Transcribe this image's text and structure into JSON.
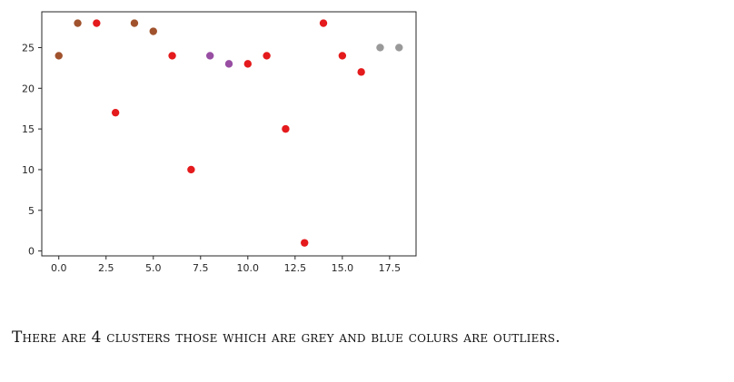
{
  "caption": "There are 4 clusters those which are grey and blue colurs are outliers.",
  "chart_data": {
    "type": "scatter",
    "title": "",
    "xlabel": "",
    "ylabel": "",
    "xlim": [
      -0.9,
      18.9
    ],
    "ylim": [
      -0.6,
      29.4
    ],
    "grid": false,
    "x_ticks": [
      0.0,
      2.5,
      5.0,
      7.5,
      10.0,
      12.5,
      15.0,
      17.5
    ],
    "x_tick_labels": [
      "0.0",
      "2.5",
      "5.0",
      "7.5",
      "10.0",
      "12.5",
      "15.0",
      "17.5"
    ],
    "y_ticks": [
      0,
      5,
      10,
      15,
      20,
      25
    ],
    "y_tick_labels": [
      "0",
      "5",
      "10",
      "15",
      "20",
      "25"
    ],
    "points": [
      {
        "x": 0,
        "y": 24,
        "color": "#a0522d"
      },
      {
        "x": 1,
        "y": 28,
        "color": "#a0522d"
      },
      {
        "x": 2,
        "y": 28,
        "color": "#e41a1c"
      },
      {
        "x": 3,
        "y": 17,
        "color": "#e41a1c"
      },
      {
        "x": 4,
        "y": 28,
        "color": "#a0522d"
      },
      {
        "x": 5,
        "y": 27,
        "color": "#a0522d"
      },
      {
        "x": 6,
        "y": 24,
        "color": "#e41a1c"
      },
      {
        "x": 7,
        "y": 10,
        "color": "#e41a1c"
      },
      {
        "x": 8,
        "y": 24,
        "color": "#984ea3"
      },
      {
        "x": 9,
        "y": 23,
        "color": "#984ea3"
      },
      {
        "x": 10,
        "y": 23,
        "color": "#e41a1c"
      },
      {
        "x": 11,
        "y": 24,
        "color": "#e41a1c"
      },
      {
        "x": 12,
        "y": 15,
        "color": "#e41a1c"
      },
      {
        "x": 13,
        "y": 1,
        "color": "#e41a1c"
      },
      {
        "x": 14,
        "y": 28,
        "color": "#e41a1c"
      },
      {
        "x": 15,
        "y": 24,
        "color": "#e41a1c"
      },
      {
        "x": 16,
        "y": 22,
        "color": "#e41a1c"
      },
      {
        "x": 17,
        "y": 25,
        "color": "#999999"
      },
      {
        "x": 18,
        "y": 25,
        "color": "#999999"
      }
    ]
  }
}
